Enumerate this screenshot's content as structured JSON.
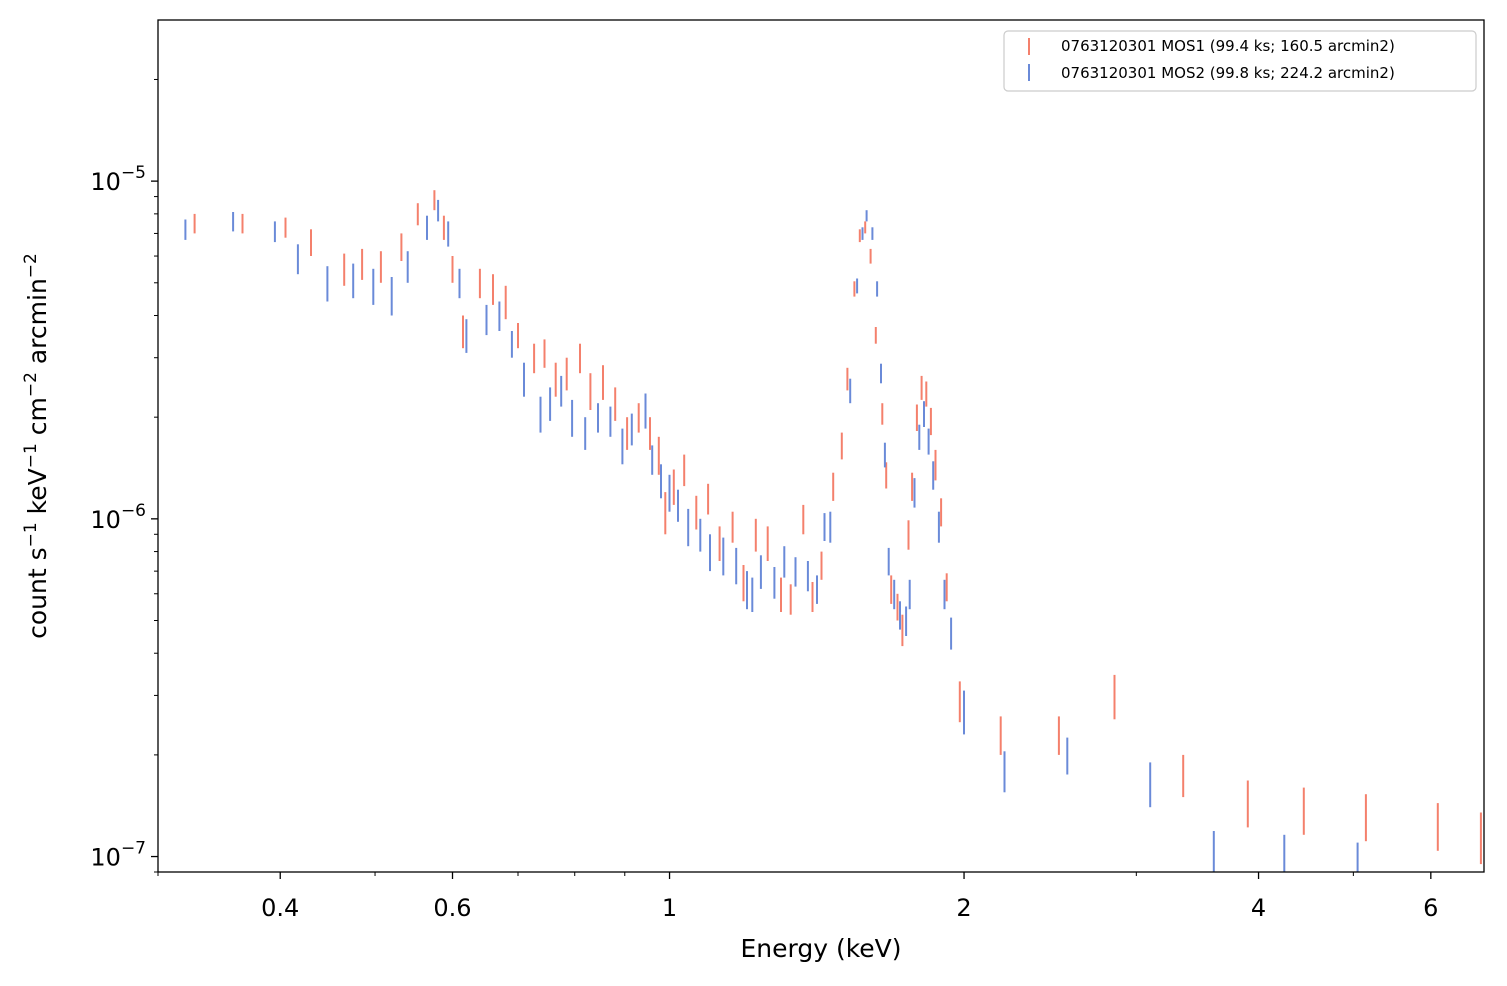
{
  "chart_data": {
    "type": "scatter",
    "xlabel": "Energy (keV)",
    "ylabel_parts": [
      "count s",
      "−1",
      " keV",
      "−1",
      " cm",
      "−2",
      " arcmin",
      "−2"
    ],
    "xscale": "log",
    "yscale": "log",
    "xlim": [
      0.3,
      6.8
    ],
    "ylim": [
      9e-08,
      3e-05
    ],
    "x_ticks": [
      {
        "value": 0.4,
        "label": "0.4"
      },
      {
        "value": 0.6,
        "label": "0.6"
      },
      {
        "value": 1,
        "label": "1"
      },
      {
        "value": 2,
        "label": "2"
      },
      {
        "value": 4,
        "label": "4"
      },
      {
        "value": 6,
        "label": "6"
      }
    ],
    "y_ticks": [
      {
        "value": 1e-07,
        "base": "10",
        "exp": "−7"
      },
      {
        "value": 1e-06,
        "base": "10",
        "exp": "−6"
      },
      {
        "value": 1e-05,
        "base": "10",
        "exp": "−5"
      }
    ],
    "legend_position": "top-right",
    "grid": false,
    "series": [
      {
        "name": "0763120301 MOS1 (99.4 ks; 160.5 arcmin2)",
        "color": "#f4806c",
        "points": [
          [
            0.327,
            7.5e-06,
            5e-07
          ],
          [
            0.366,
            7.5e-06,
            5e-07
          ],
          [
            0.405,
            7.3e-06,
            5e-07
          ],
          [
            0.43,
            6.6e-06,
            6e-07
          ],
          [
            0.465,
            5.5e-06,
            6e-07
          ],
          [
            0.485,
            5.7e-06,
            6e-07
          ],
          [
            0.507,
            5.6e-06,
            6e-07
          ],
          [
            0.532,
            6.4e-06,
            6e-07
          ],
          [
            0.553,
            8e-06,
            6e-07
          ],
          [
            0.575,
            8.8e-06,
            6e-07
          ],
          [
            0.588,
            7.3e-06,
            6e-07
          ],
          [
            0.6,
            5.5e-06,
            5e-07
          ],
          [
            0.615,
            3.6e-06,
            4e-07
          ],
          [
            0.64,
            5e-06,
            5e-07
          ],
          [
            0.66,
            4.8e-06,
            5e-07
          ],
          [
            0.68,
            4.4e-06,
            5e-07
          ],
          [
            0.7,
            3.5e-06,
            3e-07
          ],
          [
            0.727,
            3e-06,
            3e-07
          ],
          [
            0.745,
            3.1e-06,
            3e-07
          ],
          [
            0.765,
            2.6e-06,
            3e-07
          ],
          [
            0.785,
            2.7e-06,
            3e-07
          ],
          [
            0.81,
            3e-06,
            3e-07
          ],
          [
            0.83,
            2.4e-06,
            3e-07
          ],
          [
            0.855,
            2.55e-06,
            3e-07
          ],
          [
            0.88,
            2.2e-06,
            2.5e-07
          ],
          [
            0.905,
            1.8e-06,
            2e-07
          ],
          [
            0.93,
            2e-06,
            2e-07
          ],
          [
            0.955,
            1.8e-06,
            2e-07
          ],
          [
            0.975,
            1.55e-06,
            2e-07
          ],
          [
            0.99,
            1.05e-06,
            1.5e-07
          ],
          [
            1.01,
            1.25e-06,
            1.5e-07
          ],
          [
            1.035,
            1.4e-06,
            1.5e-07
          ],
          [
            1.065,
            1.05e-06,
            1.2e-07
          ],
          [
            1.095,
            1.15e-06,
            1.2e-07
          ],
          [
            1.125,
            8.5e-07,
            1e-07
          ],
          [
            1.16,
            9.5e-07,
            1e-07
          ],
          [
            1.19,
            6.5e-07,
            8e-08
          ],
          [
            1.225,
            9e-07,
            1e-07
          ],
          [
            1.26,
            8.5e-07,
            1e-07
          ],
          [
            1.3,
            6e-07,
            7e-08
          ],
          [
            1.33,
            5.8e-07,
            6e-08
          ],
          [
            1.37,
            1e-06,
            1e-07
          ],
          [
            1.4,
            5.9e-07,
            6e-08
          ],
          [
            1.43,
            7.3e-07,
            7e-08
          ],
          [
            1.47,
            1.25e-06,
            1.2e-07
          ],
          [
            1.5,
            1.65e-06,
            1.5e-07
          ],
          [
            1.52,
            2.6e-06,
            2e-07
          ],
          [
            1.545,
            4.8e-06,
            2.5e-07
          ],
          [
            1.565,
            6.9e-06,
            3e-07
          ],
          [
            1.585,
            7.3e-06,
            3e-07
          ],
          [
            1.605,
            6e-06,
            3e-07
          ],
          [
            1.625,
            3.5e-06,
            2e-07
          ],
          [
            1.65,
            2.05e-06,
            1.5e-07
          ],
          [
            1.665,
            1.35e-06,
            1.2e-07
          ],
          [
            1.685,
            6.2e-07,
            6e-08
          ],
          [
            1.71,
            5.5e-07,
            5e-08
          ],
          [
            1.73,
            4.7e-07,
            5e-08
          ],
          [
            1.755,
            9e-07,
            9e-08
          ],
          [
            1.77,
            1.25e-06,
            1.2e-07
          ],
          [
            1.79,
            2e-06,
            1.8e-07
          ],
          [
            1.81,
            2.45e-06,
            2e-07
          ],
          [
            1.83,
            2.35e-06,
            2e-07
          ],
          [
            1.85,
            1.95e-06,
            1.8e-07
          ],
          [
            1.87,
            1.45e-06,
            1.5e-07
          ],
          [
            1.895,
            1.05e-06,
            1e-07
          ],
          [
            1.92,
            6.3e-07,
            6e-08
          ],
          [
            1.98,
            2.9e-07,
            4e-08
          ],
          [
            2.18,
            2.3e-07,
            3e-08
          ],
          [
            2.5,
            2.3e-07,
            3e-08
          ],
          [
            2.85,
            3e-07,
            4.5e-08
          ],
          [
            3.35,
            1.75e-07,
            2.5e-08
          ],
          [
            3.9,
            1.45e-07,
            2.3e-08
          ],
          [
            4.45,
            1.38e-07,
            2.2e-08
          ],
          [
            5.15,
            1.32e-07,
            2.1e-08
          ],
          [
            6.1,
            1.24e-07,
            2e-08
          ],
          [
            6.75,
            1.15e-07,
            2e-08
          ]
        ]
      },
      {
        "name": "0763120301 MOS2 (99.8 ks; 224.2 arcmin2)",
        "color": "#6a8ad8",
        "points": [
          [
            0.32,
            7.2e-06,
            5e-07
          ],
          [
            0.358,
            7.6e-06,
            5e-07
          ],
          [
            0.395,
            7.1e-06,
            5e-07
          ],
          [
            0.417,
            5.9e-06,
            6e-07
          ],
          [
            0.447,
            5e-06,
            6e-07
          ],
          [
            0.475,
            5.1e-06,
            6e-07
          ],
          [
            0.498,
            4.9e-06,
            6e-07
          ],
          [
            0.52,
            4.6e-06,
            6e-07
          ],
          [
            0.54,
            5.6e-06,
            6e-07
          ],
          [
            0.565,
            7.3e-06,
            6e-07
          ],
          [
            0.58,
            8.2e-06,
            6e-07
          ],
          [
            0.594,
            7e-06,
            6e-07
          ],
          [
            0.61,
            5e-06,
            5e-07
          ],
          [
            0.62,
            3.5e-06,
            4e-07
          ],
          [
            0.65,
            3.9e-06,
            4e-07
          ],
          [
            0.67,
            4e-06,
            4e-07
          ],
          [
            0.69,
            3.3e-06,
            3e-07
          ],
          [
            0.71,
            2.6e-06,
            3e-07
          ],
          [
            0.738,
            2.05e-06,
            2.5e-07
          ],
          [
            0.755,
            2.2e-06,
            2.5e-07
          ],
          [
            0.775,
            2.4e-06,
            2.5e-07
          ],
          [
            0.795,
            2e-06,
            2.5e-07
          ],
          [
            0.82,
            1.8e-06,
            2e-07
          ],
          [
            0.845,
            2e-06,
            2e-07
          ],
          [
            0.87,
            1.95e-06,
            2e-07
          ],
          [
            0.895,
            1.65e-06,
            2e-07
          ],
          [
            0.915,
            1.85e-06,
            2e-07
          ],
          [
            0.945,
            2.1e-06,
            2.5e-07
          ],
          [
            0.96,
            1.5e-06,
            1.5e-07
          ],
          [
            0.98,
            1.3e-06,
            1.5e-07
          ],
          [
            1.0,
            1.2e-06,
            1.5e-07
          ],
          [
            1.02,
            1.1e-06,
            1.2e-07
          ],
          [
            1.045,
            9.5e-07,
            1.2e-07
          ],
          [
            1.075,
            9e-07,
            1e-07
          ],
          [
            1.1,
            8e-07,
            1e-07
          ],
          [
            1.135,
            7.8e-07,
            1e-07
          ],
          [
            1.17,
            7.3e-07,
            9e-08
          ],
          [
            1.2,
            6.2e-07,
            8e-08
          ],
          [
            1.215,
            6e-07,
            7e-08
          ],
          [
            1.24,
            7e-07,
            8e-08
          ],
          [
            1.28,
            6.5e-07,
            7e-08
          ],
          [
            1.31,
            7.5e-07,
            8e-08
          ],
          [
            1.345,
            7e-07,
            7e-08
          ],
          [
            1.385,
            6.8e-07,
            7e-08
          ],
          [
            1.415,
            6.2e-07,
            6e-08
          ],
          [
            1.44,
            9.5e-07,
            9e-08
          ],
          [
            1.46,
            9.5e-07,
            1e-07
          ],
          [
            1.53,
            2.4e-06,
            2e-07
          ],
          [
            1.555,
            4.9e-06,
            2.5e-07
          ],
          [
            1.575,
            7e-06,
            3e-07
          ],
          [
            1.59,
            7.9e-06,
            3e-07
          ],
          [
            1.612,
            7e-06,
            3e-07
          ],
          [
            1.63,
            4.8e-06,
            2.5e-07
          ],
          [
            1.645,
            2.7e-06,
            1.8e-07
          ],
          [
            1.66,
            1.55e-06,
            1.3e-07
          ],
          [
            1.675,
            7.5e-07,
            7e-08
          ],
          [
            1.697,
            6e-07,
            6e-08
          ],
          [
            1.72,
            5.2e-07,
            5e-08
          ],
          [
            1.745,
            5e-07,
            5e-08
          ],
          [
            1.76,
            6e-07,
            6e-08
          ],
          [
            1.78,
            1.2e-06,
            1.2e-07
          ],
          [
            1.8,
            1.75e-06,
            1.5e-07
          ],
          [
            1.82,
            2.05e-06,
            1.8e-07
          ],
          [
            1.84,
            1.7e-06,
            1.5e-07
          ],
          [
            1.86,
            1.35e-06,
            1.3e-07
          ],
          [
            1.885,
            9.5e-07,
            1e-07
          ],
          [
            1.91,
            6e-07,
            6e-08
          ],
          [
            1.94,
            4.6e-07,
            5e-08
          ],
          [
            2.0,
            2.7e-07,
            4e-08
          ],
          [
            2.2,
            1.8e-07,
            2.5e-08
          ],
          [
            2.55,
            2e-07,
            2.5e-08
          ],
          [
            3.1,
            1.65e-07,
            2.5e-08
          ],
          [
            3.6,
            1.03e-07,
            1.6e-08
          ],
          [
            4.25,
            1e-07,
            1.6e-08
          ],
          [
            5.05,
            9.5e-08,
            1.5e-08
          ]
        ]
      }
    ]
  }
}
